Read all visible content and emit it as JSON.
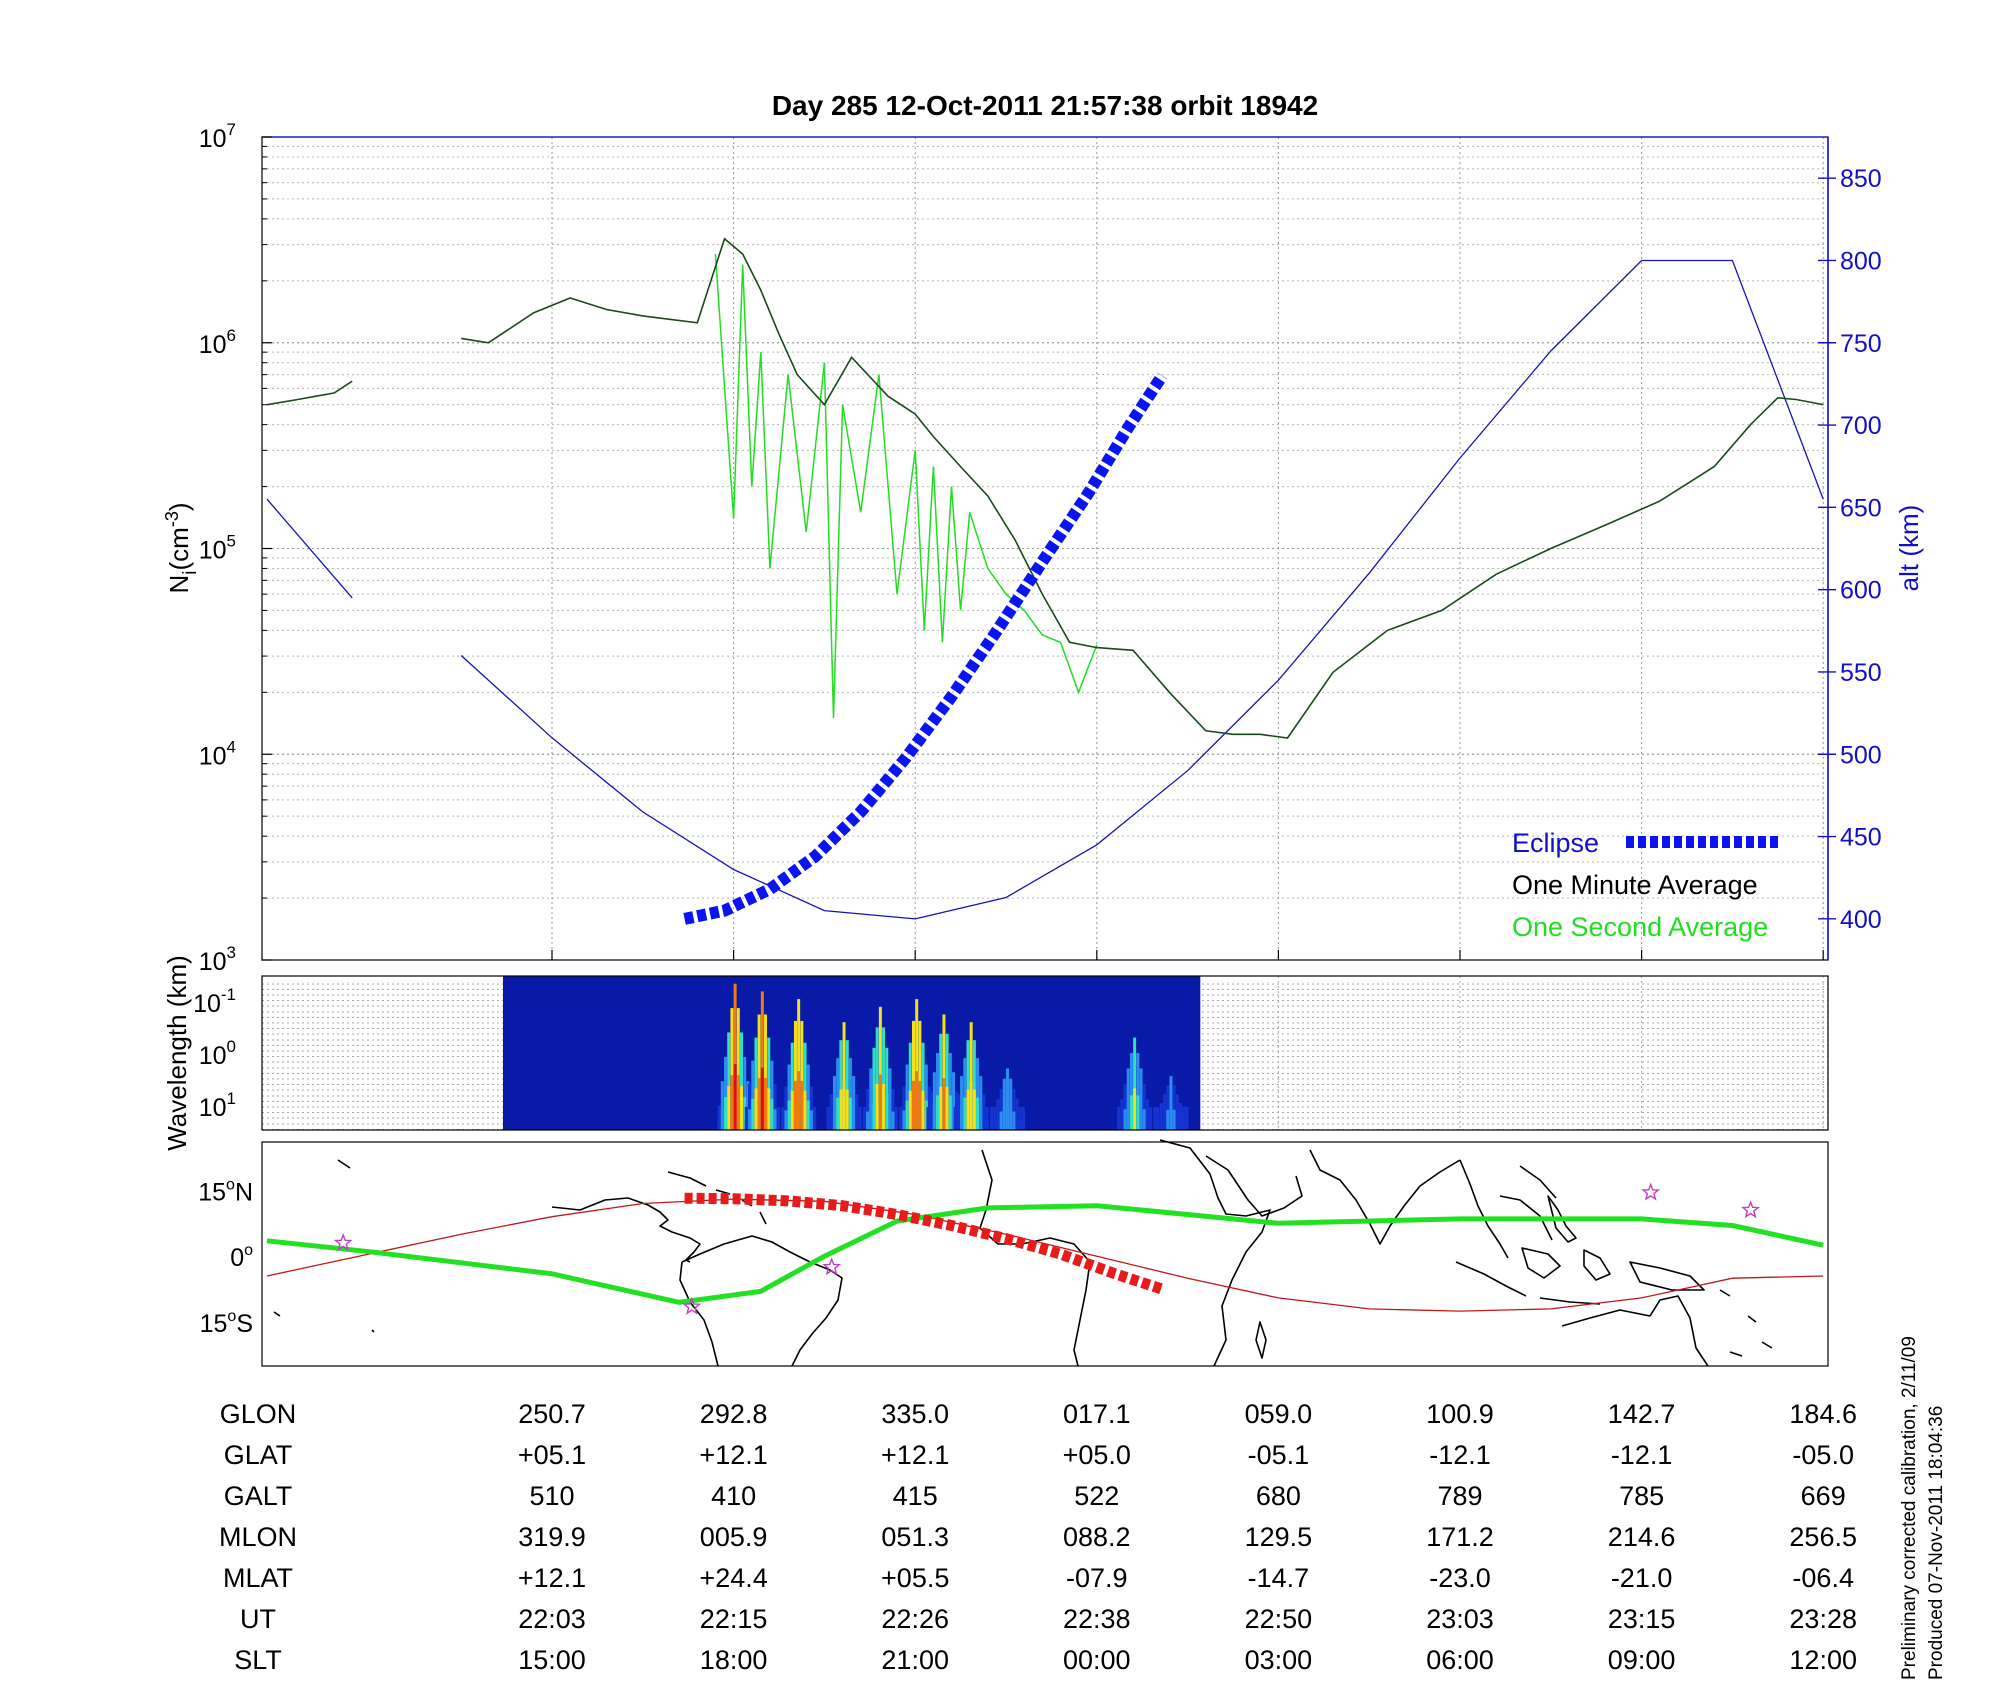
{
  "colors": {
    "altitude": "#1414b4",
    "eclipse": "#0a14f0",
    "minute_avg": "#000000",
    "second_avg": "#22dd22",
    "track_red": "#c01818",
    "track_green": "#22e022",
    "star": "#c040c0",
    "right_axis": "#1010c8"
  },
  "chart_data": [
    {
      "type": "line",
      "panel": "ion-density",
      "title": "Day 285  12-Oct-2011 21:57:38   orbit 18942",
      "ylabel": "N",
      "ylabel_sub": "i",
      "ylabel_unit": "(cm",
      "ylabel_exp": "-3",
      "ylabel_close": ")",
      "yscale": "log",
      "ylim": [
        1000,
        10000000
      ],
      "y_ticks": [
        {
          "base": "10",
          "exp": "3",
          "value": 1000
        },
        {
          "base": "10",
          "exp": "4",
          "value": 10000
        },
        {
          "base": "10",
          "exp": "5",
          "value": 100000
        },
        {
          "base": "10",
          "exp": "6",
          "value": 1000000
        },
        {
          "base": "10",
          "exp": "7",
          "value": 10000000
        }
      ],
      "y2label": "alt (km)",
      "y2lim": [
        375,
        875
      ],
      "y2_ticks": [
        "400",
        "450",
        "500",
        "550",
        "600",
        "650",
        "700",
        "750",
        "800",
        "850"
      ],
      "xlim": [
        -1.57,
        7.0
      ],
      "x_units": "column index of the time table below (0 = 22:03, 7 = 23:28)",
      "grid": true,
      "legend_position": "lower-right",
      "series": [
        {
          "name": "Eclipse",
          "kind": "altitude-thick",
          "x": [
            0.73,
            0.95,
            1.2,
            1.45,
            1.7,
            1.95,
            2.2,
            2.45,
            2.7,
            2.95,
            3.17,
            3.36
          ],
          "values": [
            400,
            405,
            418,
            438,
            465,
            498,
            535,
            575,
            617,
            658,
            698,
            730
          ]
        },
        {
          "name": "One Minute Average",
          "kind": "density",
          "x": [
            -1.57,
            -1.4,
            -1.3,
            -1.2,
            -1.1
          ],
          "values": [
            500000,
            530000,
            550000,
            570000,
            650000
          ]
        },
        {
          "name": "One Minute Average",
          "kind": "density",
          "x": [
            -0.5,
            -0.35,
            -0.1,
            0.1,
            0.3,
            0.5,
            0.8,
            0.95,
            1.05,
            1.15,
            1.25,
            1.35,
            1.5,
            1.65,
            1.85,
            2.0,
            2.1,
            2.25,
            2.4,
            2.55,
            2.7,
            2.85,
            3.0,
            3.2,
            3.4,
            3.6,
            3.75,
            3.9,
            4.05,
            4.3,
            4.6,
            4.9,
            5.2,
            5.5,
            5.8,
            6.1,
            6.4,
            6.6,
            6.75,
            6.85,
            6.95,
            7.0
          ],
          "values": [
            1050000,
            1000000,
            1400000,
            1650000,
            1450000,
            1350000,
            1250000,
            3200000,
            2700000,
            1800000,
            1100000,
            700000,
            500000,
            850000,
            550000,
            450000,
            350000,
            250000,
            180000,
            110000,
            60000,
            35000,
            33000,
            32000,
            20000,
            13000,
            12500,
            12500,
            12000,
            25000,
            40000,
            50000,
            75000,
            100000,
            130000,
            170000,
            250000,
            400000,
            540000,
            530000,
            510000,
            500000
          ]
        },
        {
          "name": "One Second Average",
          "kind": "density-spiky",
          "x": [
            0.9,
            1.0,
            1.05,
            1.1,
            1.15,
            1.2,
            1.3,
            1.4,
            1.5,
            1.55,
            1.6,
            1.7,
            1.8,
            1.9,
            2.0,
            2.05,
            2.1,
            2.15,
            2.2,
            2.25,
            2.3,
            2.4,
            2.5,
            2.6,
            2.7,
            2.8,
            2.9,
            3.0
          ],
          "values": [
            2700000,
            140000,
            2400000,
            200000,
            900000,
            80000,
            700000,
            120000,
            800000,
            15000,
            500000,
            150000,
            700000,
            60000,
            300000,
            40000,
            250000,
            35000,
            200000,
            50000,
            150000,
            80000,
            60000,
            50000,
            38000,
            35000,
            20000,
            34000
          ]
        },
        {
          "name": "alt",
          "kind": "altitude-thin",
          "axis": "right",
          "x": [
            -1.57,
            -1.1,
            -0.5,
            0,
            0.5,
            1,
            1.5,
            2,
            2.5,
            3,
            3.5,
            4,
            4.5,
            5,
            5.5,
            6,
            6.5,
            7.0
          ],
          "values": [
            655,
            595,
            560,
            510,
            465,
            430,
            405,
            400,
            413,
            445,
            490,
            545,
            610,
            680,
            745,
            800,
            800,
            655
          ]
        }
      ]
    },
    {
      "type": "heatmap",
      "panel": "wavelength-spectrogram",
      "ylabel": "Wavelength (km)",
      "y_ticks": [
        {
          "base": "10",
          "exp": "-1"
        },
        {
          "base": "10",
          "exp": "0"
        },
        {
          "base": "10",
          "exp": "1"
        }
      ],
      "x_range_covered": [
        -0.27,
        3.57
      ],
      "intensity_peaks": [
        {
          "x": 1.0,
          "level": 0.95
        },
        {
          "x": 1.15,
          "level": 0.9
        },
        {
          "x": 1.35,
          "level": 0.85
        },
        {
          "x": 1.6,
          "level": 0.7
        },
        {
          "x": 1.8,
          "level": 0.8
        },
        {
          "x": 2.0,
          "level": 0.85
        },
        {
          "x": 2.15,
          "level": 0.75
        },
        {
          "x": 2.3,
          "level": 0.7
        },
        {
          "x": 2.5,
          "level": 0.4
        },
        {
          "x": 3.2,
          "level": 0.6
        },
        {
          "x": 3.4,
          "level": 0.35
        }
      ]
    },
    {
      "type": "map",
      "panel": "ground-track",
      "lat_ticks": [
        {
          "num": "15",
          "unit": "N",
          "value": 15
        },
        {
          "num": "0",
          "unit": "",
          "value": 0
        },
        {
          "num": "15",
          "unit": "S",
          "value": -15
        }
      ],
      "lat_range": [
        -25,
        26
      ],
      "track_red": {
        "x": [
          -1.57,
          -0.5,
          0,
          0.5,
          1,
          1.5,
          2,
          2.5,
          3,
          3.5,
          4,
          4.5,
          5,
          5.5,
          6,
          6.5,
          7.0
        ],
        "lat": [
          -4.5,
          5,
          9,
          12,
          13,
          12.5,
          9.5,
          5,
          0,
          -5,
          -9.5,
          -12,
          -12.5,
          -12,
          -9.5,
          -5,
          -4.5
        ]
      },
      "track_eclipse": {
        "x": [
          0.73,
          1.0,
          1.3,
          1.6,
          1.9,
          2.2,
          2.5,
          2.8,
          3.1,
          3.36
        ],
        "lat": [
          13.2,
          13.1,
          12.6,
          11.5,
          9.5,
          7.0,
          4.0,
          0.5,
          -4.0,
          -7.5
        ]
      },
      "track_green": {
        "x": [
          -1.57,
          -1.0,
          0,
          0.7,
          1.15,
          1.5,
          1.9,
          2.4,
          3.0,
          4.0,
          5.0,
          5.5,
          6.0,
          6.5,
          7.0
        ],
        "lat": [
          3.5,
          1,
          -4,
          -10.5,
          -8,
          0,
          8,
          11,
          11.5,
          7.5,
          8.5,
          8.5,
          8.5,
          7,
          2.5
        ]
      },
      "stars": [
        {
          "x": -1.15,
          "lat": 3
        },
        {
          "x": 0.77,
          "lat": -11.5
        },
        {
          "x": 1.54,
          "lat": -2.5
        },
        {
          "x": 6.05,
          "lat": 14.5
        },
        {
          "x": 6.6,
          "lat": 10.5
        }
      ]
    }
  ],
  "table": {
    "columns_x_note": "8 columns aligned with vertical gridlines",
    "rows": [
      {
        "label": "GLON",
        "values": [
          "250.7",
          "292.8",
          "335.0",
          "017.1",
          "059.0",
          "100.9",
          "142.7",
          "184.6"
        ]
      },
      {
        "label": "GLAT",
        "values": [
          "+05.1",
          "+12.1",
          "+12.1",
          "+05.0",
          "-05.1",
          "-12.1",
          "-12.1",
          "-05.0"
        ]
      },
      {
        "label": "GALT",
        "values": [
          "510",
          "410",
          "415",
          "522",
          "680",
          "789",
          "785",
          "669"
        ]
      },
      {
        "label": "MLON",
        "values": [
          "319.9",
          "005.9",
          "051.3",
          "088.2",
          "129.5",
          "171.2",
          "214.6",
          "256.5"
        ]
      },
      {
        "label": "MLAT",
        "values": [
          "+12.1",
          "+24.4",
          "+05.5",
          "-07.9",
          "-14.7",
          "-23.0",
          "-21.0",
          "-06.4"
        ]
      },
      {
        "label": "UT",
        "values": [
          "22:03",
          "22:15",
          "22:26",
          "22:38",
          "22:50",
          "23:03",
          "23:15",
          "23:28"
        ]
      },
      {
        "label": "SLT",
        "values": [
          "15:00",
          "18:00",
          "21:00",
          "00:00",
          "03:00",
          "06:00",
          "09:00",
          "12:00"
        ]
      }
    ]
  },
  "notes": {
    "line1": "Preliminary corrected calibration, 2/11/09",
    "line2": "Produced 07-Nov-2011 18:04:36"
  }
}
